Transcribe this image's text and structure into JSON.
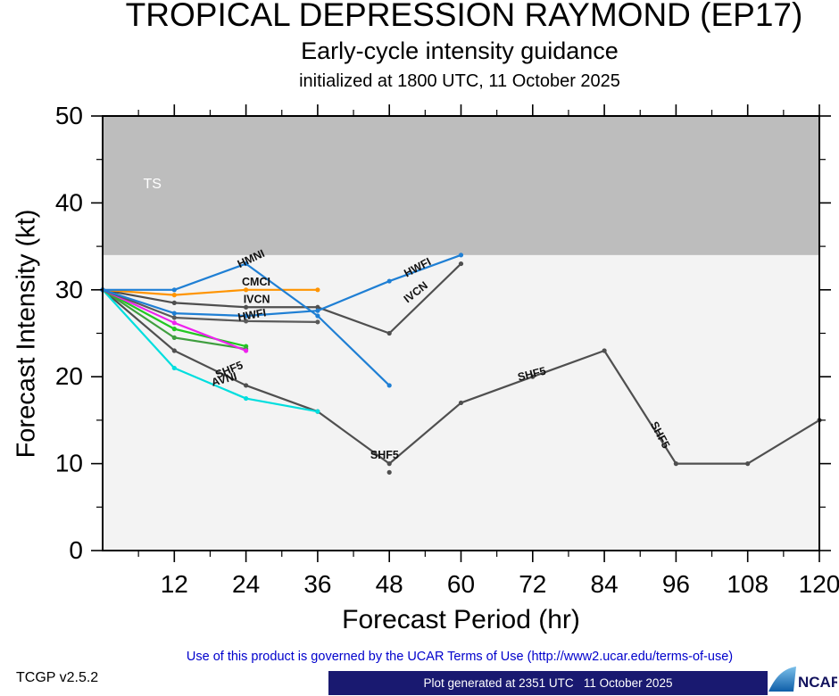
{
  "chart_data": {
    "type": "line",
    "title": "TROPICAL DEPRESSION RAYMOND (EP17)",
    "subtitle": "Early-cycle intensity guidance",
    "init_label": "initialized at 1800 UTC, 11 October 2025",
    "xlabel": "Forecast Period (hr)",
    "ylabel": "Forecast Intensity (kt)",
    "xlim": [
      0,
      120
    ],
    "ylim": [
      0,
      50
    ],
    "xticks": [
      12,
      24,
      36,
      48,
      60,
      72,
      84,
      96,
      108,
      120
    ],
    "yticks": [
      0,
      10,
      20,
      30,
      40,
      50
    ],
    "x_minor_step": 6,
    "y_minor_step": 5,
    "plot_bg": "#f3f3f3",
    "bands": [
      {
        "label": "TS",
        "from": 34,
        "to": 50,
        "color": "#bdbdbd",
        "label_color": "#ffffff",
        "label_x": 6.8,
        "label_y": 41.7
      }
    ],
    "series": [
      {
        "name": "SHF5",
        "color": "#4f4f4f",
        "points": [
          [
            0,
            30
          ],
          [
            12,
            23
          ],
          [
            24,
            19
          ],
          [
            36,
            16
          ],
          [
            48,
            10
          ],
          [
            60,
            17
          ],
          [
            72,
            20
          ],
          [
            84,
            23
          ],
          [
            96,
            10
          ],
          [
            108,
            10
          ],
          [
            120,
            15
          ]
        ]
      },
      {
        "name": "AVNI",
        "color": "#00dede",
        "points": [
          [
            0,
            30
          ],
          [
            12,
            21
          ],
          [
            24,
            17.5
          ],
          [
            36,
            16
          ]
        ]
      },
      {
        "name": "",
        "color": "#22c722",
        "points": [
          [
            0,
            30
          ],
          [
            12,
            25.5
          ],
          [
            24,
            23.5
          ]
        ]
      },
      {
        "name": "",
        "color": "#3f9e3f",
        "points": [
          [
            0,
            30
          ],
          [
            12,
            24.5
          ],
          [
            24,
            23.2
          ]
        ]
      },
      {
        "name": "",
        "color": "#ee22ee",
        "points": [
          [
            0,
            30
          ],
          [
            12,
            26.2
          ],
          [
            24,
            23
          ]
        ]
      },
      {
        "name": "",
        "color": "#5a5a5a",
        "points": [
          [
            0,
            30
          ],
          [
            12,
            26.8
          ],
          [
            24,
            26.4
          ],
          [
            36,
            26.3
          ]
        ]
      },
      {
        "name": "IVCN",
        "color": "#4f4f4f",
        "points": [
          [
            0,
            30
          ],
          [
            12,
            28.5
          ],
          [
            24,
            28
          ],
          [
            36,
            28
          ],
          [
            48,
            25
          ],
          [
            60,
            33
          ]
        ]
      },
      {
        "name": "CMCI",
        "color": "#ff9400",
        "points": [
          [
            0,
            30
          ],
          [
            12,
            29.4
          ],
          [
            24,
            30
          ],
          [
            36,
            30
          ]
        ]
      },
      {
        "name": "HMNI",
        "color": "#1f7fd4",
        "points": [
          [
            0,
            30
          ],
          [
            12,
            30
          ],
          [
            24,
            33
          ],
          [
            36,
            27
          ],
          [
            48,
            19
          ]
        ]
      },
      {
        "name": "HWFI",
        "color": "#1f7fd4",
        "points": [
          [
            0,
            30
          ],
          [
            12,
            27.3
          ],
          [
            24,
            27
          ],
          [
            36,
            27.6
          ],
          [
            48,
            31
          ],
          [
            60,
            34
          ]
        ]
      }
    ],
    "line_labels": [
      {
        "text": "HMNI",
        "x": 25.1,
        "y": 33.2,
        "rot": -25
      },
      {
        "text": "CMCI",
        "x": 25.7,
        "y": 30.5,
        "rot": 0
      },
      {
        "text": "IVCN",
        "x": 25.8,
        "y": 28.5,
        "rot": 0
      },
      {
        "text": "HWFI",
        "x": 25.1,
        "y": 26.7,
        "rot": -10
      },
      {
        "text": "SHF5",
        "x": 21.4,
        "y": 20.4,
        "rot": -22
      },
      {
        "text": "AVNI",
        "x": 20.5,
        "y": 19.3,
        "rot": -16
      },
      {
        "text": "HWFI",
        "x": 53.0,
        "y": 32.2,
        "rot": -28
      },
      {
        "text": "IVCN",
        "x": 52.8,
        "y": 29.4,
        "rot": -38
      },
      {
        "text": "SHF5",
        "x": 72.0,
        "y": 19.9,
        "rot": -14
      },
      {
        "text": "SHF5",
        "x": 92.8,
        "y": 13.1,
        "rot": 62
      },
      {
        "text": "SHF5",
        "x": 47.2,
        "y": 10.6,
        "rot": 0
      }
    ],
    "extra_markers": [
      {
        "x": 48,
        "y": 9,
        "color": "#4f4f4f"
      }
    ]
  },
  "footer": {
    "version": "TCGP v2.5.2",
    "terms": "Use of this product is governed by the UCAR Terms of Use (http://www2.ucar.edu/terms-of-use)",
    "generated": "Plot generated at 2351 UTC   11 October 2025",
    "ncar": "NCAR"
  }
}
